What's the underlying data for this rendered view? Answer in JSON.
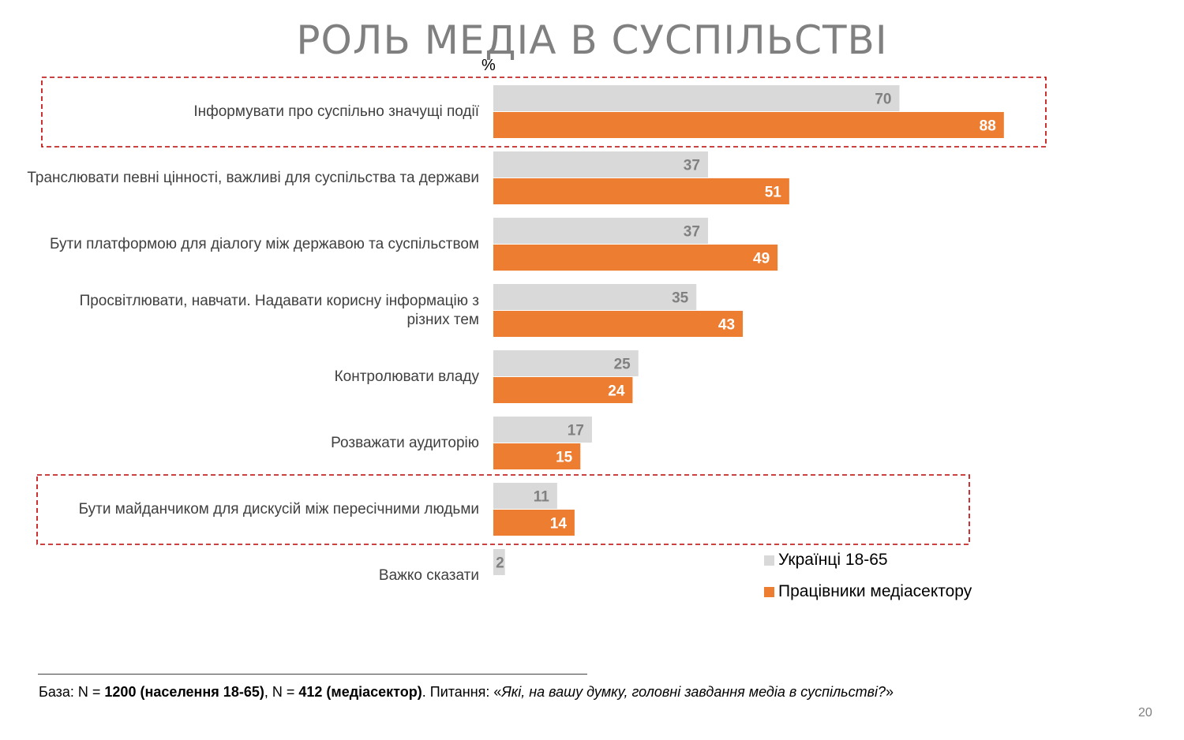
{
  "slide": {
    "title": "РОЛЬ МЕДІА В СУСПІЛЬСТВІ",
    "unit": "%",
    "page_number": "20"
  },
  "chart_data": {
    "type": "bar",
    "orientation": "horizontal",
    "categories": [
      [
        "Інформувати про суспільно значущі події"
      ],
      [
        "Транслювати певні цінності, важливі для суспільства та держави"
      ],
      [
        "Бути платформою для діалогу між державою та суспільством"
      ],
      [
        "Просвітлювати, навчати. Надавати корисну інформацію з",
        "різних тем"
      ],
      [
        "Контролювати владу"
      ],
      [
        "Розважати аудиторію"
      ],
      [
        "Бути майданчиком для дискусій між пересічними людьми"
      ],
      [
        "Важко сказати"
      ]
    ],
    "series": [
      {
        "name": "Українці 18-65",
        "color": "#d9d9d9",
        "label_color": "#808080",
        "values": [
          70,
          37,
          37,
          35,
          25,
          17,
          11,
          2
        ]
      },
      {
        "name": "Працівники медіасектору",
        "color": "#ed7d31",
        "label_color": "#ffffff",
        "values": [
          88,
          51,
          49,
          43,
          24,
          15,
          14,
          null
        ]
      }
    ],
    "xlim": [
      0,
      100
    ],
    "grid": false,
    "legend_position": "bottom-right",
    "highlighted_categories": [
      0,
      6
    ],
    "highlight_color": "#c00000"
  },
  "footnote": {
    "base_prefix": "База: N = ",
    "base_population": "1200 (населення 18-65)",
    "separator": ", N = ",
    "base_media": "412 (медіасектор)",
    "question_prefix": ". Питання: «",
    "question": "Які, на вашу думку, головні завдання медіа в суспільстві?",
    "question_suffix": "»"
  }
}
